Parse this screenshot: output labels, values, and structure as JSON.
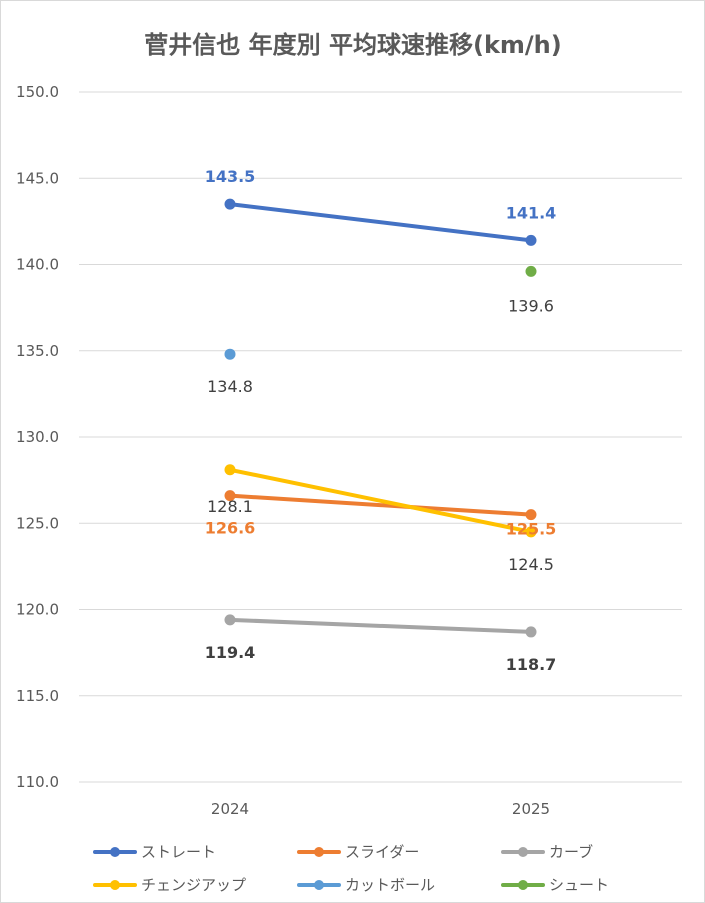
{
  "chart_data": {
    "type": "line",
    "title": "菅井信也 年度別 平均球速推移(km/h)",
    "categories": [
      "2024",
      "2025"
    ],
    "ylim": [
      110.0,
      150.0
    ],
    "yticks": [
      "110.0",
      "115.0",
      "120.0",
      "125.0",
      "130.0",
      "135.0",
      "140.0",
      "145.0",
      "150.0"
    ],
    "grid": true,
    "legend_position": "bottom",
    "series": [
      {
        "name": "ストレート",
        "color": "#4472c4",
        "values": [
          143.5,
          141.4
        ],
        "labels": [
          "143.5",
          "141.4"
        ],
        "label_color": "#4472c4",
        "label_bold": true
      },
      {
        "name": "スライダー",
        "color": "#ed7d31",
        "values": [
          126.6,
          125.5
        ],
        "labels": [
          "126.6",
          "125.5"
        ],
        "label_color": "#ed7d31",
        "label_bold": true
      },
      {
        "name": "カーブ",
        "color": "#a5a5a5",
        "values": [
          119.4,
          118.7
        ],
        "labels": [
          "119.4",
          "118.7"
        ],
        "label_color": "#404040",
        "label_bold": true
      },
      {
        "name": "チェンジアップ",
        "color": "#ffc000",
        "values": [
          128.1,
          124.5
        ],
        "labels": [
          "128.1",
          "124.5"
        ],
        "label_color": "#404040",
        "label_bold": false
      },
      {
        "name": "カットボール",
        "color": "#5b9bd5",
        "values": [
          134.8,
          null
        ],
        "labels": [
          "134.8",
          null
        ],
        "label_color": "#404040",
        "label_bold": false
      },
      {
        "name": "シュート",
        "color": "#70ad47",
        "values": [
          null,
          139.6
        ],
        "labels": [
          null,
          "139.6"
        ],
        "label_color": "#404040",
        "label_bold": false
      }
    ]
  }
}
